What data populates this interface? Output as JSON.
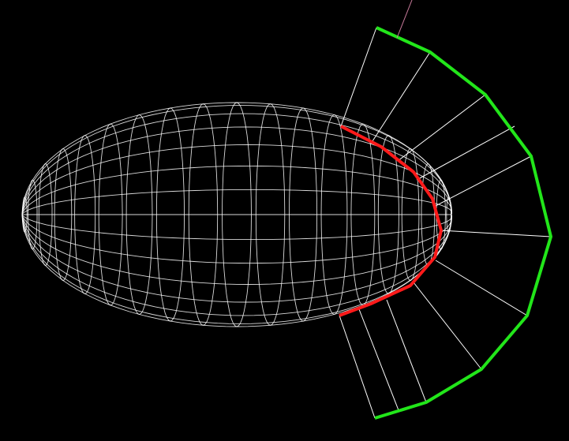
{
  "scene": {
    "background_color": "#000000",
    "wireframe_color": "#ffffff",
    "silhouette_color": "#ff1a1a",
    "offset_curve_color": "#22e61a",
    "normal_line_color": "#ffffff",
    "stray_line_color": "#c77a9a",
    "latitude_line_count": 14,
    "longitude_line_count": 20,
    "normal_segment_count": 11
  }
}
